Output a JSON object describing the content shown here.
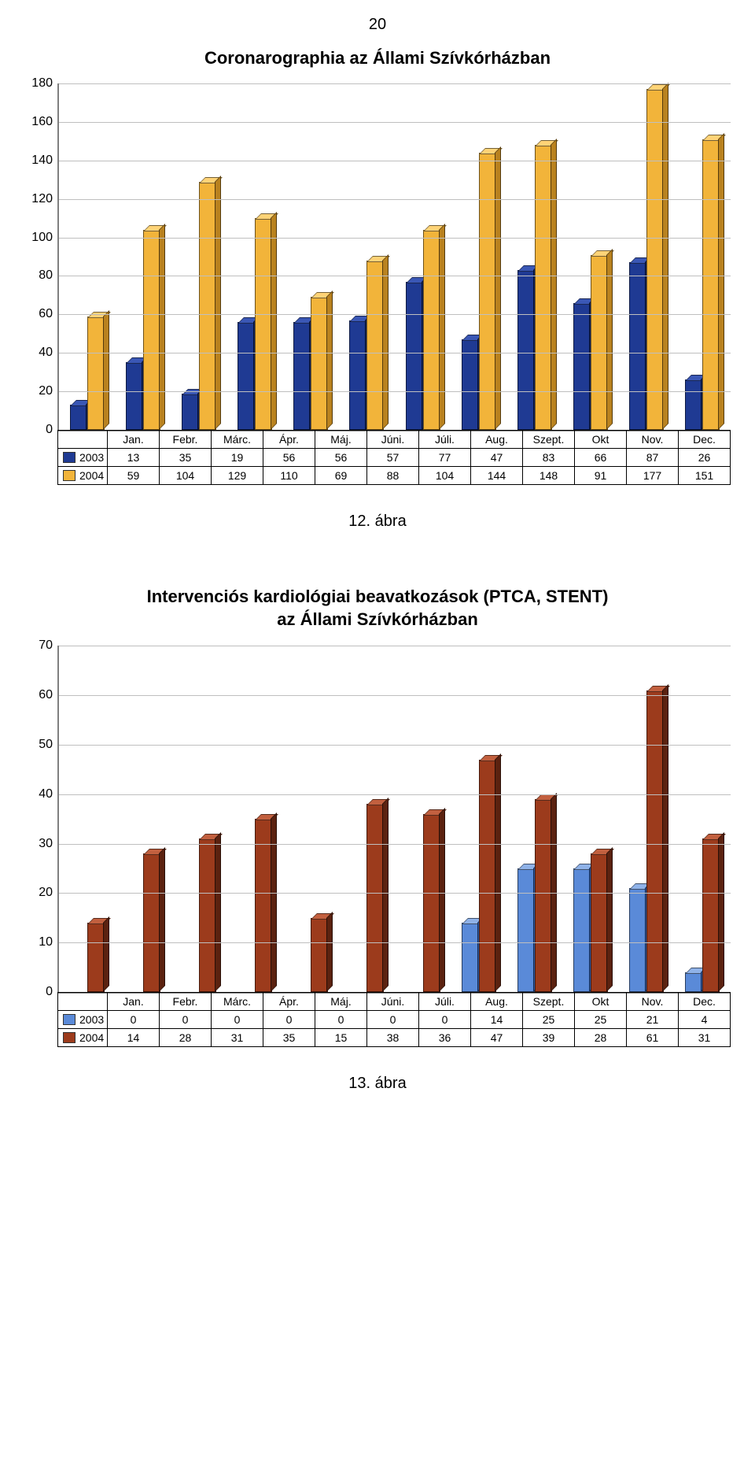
{
  "page_number": "20",
  "chart1": {
    "type": "bar",
    "title": "Coronarographia az Állami Szívkórházban",
    "categories": [
      "Jan.",
      "Febr.",
      "Márc.",
      "Ápr.",
      "Máj.",
      "Júni.",
      "Júli.",
      "Aug.",
      "Szept.",
      "Okt",
      "Nov.",
      "Dec."
    ],
    "series": [
      {
        "name": "2003",
        "color": "#1f3a93",
        "top": "#3a57b5",
        "side": "#122560",
        "values": [
          13,
          35,
          19,
          56,
          56,
          57,
          77,
          47,
          83,
          66,
          87,
          26
        ]
      },
      {
        "name": "2004",
        "color": "#f2b43a",
        "top": "#ffd377",
        "side": "#b9821f",
        "values": [
          59,
          104,
          129,
          110,
          69,
          88,
          104,
          144,
          148,
          91,
          177,
          151
        ]
      }
    ],
    "y": {
      "min": 0,
      "max": 180,
      "step": 20
    },
    "grid_color": "#bfbfbf",
    "background_color": "#ffffff",
    "caption": "12. ábra"
  },
  "chart2": {
    "type": "bar",
    "title_line1": "Intervenciós kardiológiai beavatkozások (PTCA, STENT)",
    "title_line2": "az Állami Szívkórházban",
    "categories": [
      "Jan.",
      "Febr.",
      "Márc.",
      "Ápr.",
      "Máj.",
      "Júni.",
      "Júli.",
      "Aug.",
      "Szept.",
      "Okt",
      "Nov.",
      "Dec."
    ],
    "series": [
      {
        "name": "2003",
        "color": "#5a8ad8",
        "top": "#8fb2e8",
        "side": "#2f5eab",
        "values": [
          0,
          0,
          0,
          0,
          0,
          0,
          0,
          14,
          25,
          25,
          21,
          4
        ]
      },
      {
        "name": "2004",
        "color": "#9c3b1c",
        "top": "#c2603f",
        "side": "#5b2210",
        "values": [
          14,
          28,
          31,
          35,
          15,
          38,
          36,
          47,
          39,
          28,
          61,
          31
        ]
      }
    ],
    "y": {
      "min": 0,
      "max": 70,
      "step": 10
    },
    "grid_color": "#bfbfbf",
    "background_color": "#ffffff",
    "caption": "13. ábra"
  }
}
